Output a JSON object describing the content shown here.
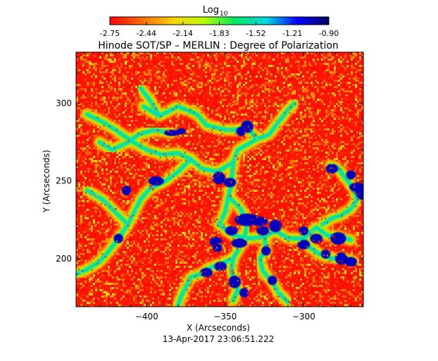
{
  "chart_data": {
    "type": "heatmap",
    "title": "Hinode SOT/SP – MERLIN : Degree of Polarization",
    "xlabel": "X (Arcseconds)",
    "ylabel": "Y (Arcseconds)",
    "footer": "13-Apr-2017 23:06:51.222",
    "xlim": [
      -445,
      -262
    ],
    "ylim": [
      169,
      333
    ],
    "xticks": [
      -400,
      -350,
      -300
    ],
    "yticks": [
      200,
      250,
      300
    ],
    "colorbar": {
      "label_main": "Log",
      "label_sub": "10",
      "range": [
        -2.75,
        -0.9
      ],
      "ticks": [
        "-2.75",
        "-2.44",
        "-2.14",
        "-1.83",
        "-1.52",
        "-1.21",
        "-0.90"
      ],
      "colormap": [
        "#ff0000",
        "#ff6a00",
        "#ffd000",
        "#b8ff00",
        "#00e860",
        "#00d8e0",
        "#0000ff",
        "#000060"
      ]
    },
    "background_value": -2.7,
    "network_paths": [
      [
        [
          -402,
          298
        ],
        [
          -392,
          292
        ],
        [
          -380,
          298
        ],
        [
          -368,
          293
        ],
        [
          -362,
          286
        ],
        [
          -350,
          283
        ],
        [
          -342,
          283
        ],
        [
          -336,
          285
        ],
        [
          -330,
          277
        ],
        [
          -342,
          270
        ],
        [
          -345,
          262
        ],
        [
          -346,
          248
        ],
        [
          -348,
          240
        ],
        [
          -350,
          230
        ],
        [
          -354,
          222
        ],
        [
          -345,
          215
        ],
        [
          -335,
          213
        ],
        [
          -325,
          214
        ],
        [
          -318,
          218
        ],
        [
          -310,
          213
        ],
        [
          -300,
          213
        ],
        [
          -292,
          220
        ],
        [
          -285,
          215
        ],
        [
          -276,
          214
        ],
        [
          -270,
          212
        ]
      ],
      [
        [
          -345,
          262
        ],
        [
          -355,
          256
        ],
        [
          -365,
          258
        ],
        [
          -372,
          264
        ],
        [
          -380,
          268
        ],
        [
          -390,
          267
        ],
        [
          -400,
          270
        ],
        [
          -410,
          276
        ],
        [
          -420,
          283
        ],
        [
          -428,
          288
        ],
        [
          -438,
          293
        ]
      ],
      [
        [
          -384,
          281
        ],
        [
          -395,
          283
        ],
        [
          -405,
          280
        ],
        [
          -412,
          275
        ],
        [
          -422,
          270
        ],
        [
          -430,
          275
        ]
      ],
      [
        [
          -372,
          264
        ],
        [
          -380,
          256
        ],
        [
          -388,
          250
        ],
        [
          -398,
          245
        ],
        [
          -404,
          238
        ],
        [
          -408,
          230
        ],
        [
          -412,
          222
        ],
        [
          -418,
          213
        ]
      ],
      [
        [
          -348,
          240
        ],
        [
          -340,
          232
        ],
        [
          -336,
          222
        ],
        [
          -338,
          212
        ],
        [
          -342,
          205
        ],
        [
          -345,
          200
        ],
        [
          -346,
          192
        ],
        [
          -344,
          186
        ],
        [
          -342,
          180
        ],
        [
          -345,
          173
        ]
      ],
      [
        [
          -345,
          200
        ],
        [
          -352,
          197
        ],
        [
          -360,
          194
        ],
        [
          -366,
          190
        ],
        [
          -372,
          188
        ],
        [
          -375,
          182
        ],
        [
          -378,
          176
        ],
        [
          -380,
          170
        ]
      ],
      [
        [
          -325,
          214
        ],
        [
          -324,
          205
        ],
        [
          -328,
          200
        ],
        [
          -326,
          192
        ],
        [
          -320,
          185
        ],
        [
          -316,
          178
        ],
        [
          -310,
          172
        ]
      ],
      [
        [
          -300,
          213
        ],
        [
          -296,
          207
        ],
        [
          -290,
          203
        ],
        [
          -282,
          200
        ],
        [
          -274,
          200
        ],
        [
          -268,
          198
        ]
      ],
      [
        [
          -283,
          260
        ],
        [
          -278,
          258
        ],
        [
          -272,
          250
        ],
        [
          -268,
          245
        ],
        [
          -266,
          238
        ],
        [
          -270,
          232
        ],
        [
          -276,
          228
        ],
        [
          -282,
          226
        ],
        [
          -288,
          222
        ]
      ],
      [
        [
          -330,
          277
        ],
        [
          -322,
          280
        ],
        [
          -316,
          288
        ],
        [
          -310,
          296
        ],
        [
          -306,
          300
        ]
      ],
      [
        [
          -418,
          213
        ],
        [
          -424,
          205
        ],
        [
          -430,
          198
        ],
        [
          -438,
          193
        ],
        [
          -445,
          190
        ]
      ],
      [
        [
          -412,
          222
        ],
        [
          -420,
          230
        ],
        [
          -428,
          238
        ],
        [
          -438,
          244
        ]
      ],
      [
        [
          -392,
          292
        ],
        [
          -398,
          302
        ],
        [
          -404,
          310
        ]
      ]
    ],
    "strong_patches": [
      [
        -384,
        281,
        5,
        2
      ],
      [
        -378,
        282,
        3,
        2
      ],
      [
        -336,
        285,
        4,
        4
      ],
      [
        -340,
        282,
        3,
        3
      ],
      [
        -394,
        250,
        5,
        3
      ],
      [
        -354,
        252,
        4,
        4
      ],
      [
        -347,
        249,
        4,
        3
      ],
      [
        -336,
        225,
        8,
        4
      ],
      [
        -328,
        224,
        5,
        3
      ],
      [
        -318,
        221,
        4,
        4
      ],
      [
        -326,
        218,
        4,
        3
      ],
      [
        -346,
        218,
        4,
        3
      ],
      [
        -300,
        218,
        3,
        3
      ],
      [
        -292,
        213,
        4,
        3
      ],
      [
        -278,
        213,
        5,
        4
      ],
      [
        -266,
        246,
        5,
        3
      ],
      [
        -263,
        243,
        4,
        5
      ],
      [
        -270,
        254,
        3,
        3
      ],
      [
        -282,
        258,
        4,
        3
      ],
      [
        -356,
        211,
        4,
        3
      ],
      [
        -355,
        207,
        3,
        3
      ],
      [
        -341,
        210,
        5,
        3
      ],
      [
        -353,
        195,
        4,
        3
      ],
      [
        -362,
        191,
        4,
        3
      ],
      [
        -344,
        185,
        4,
        4
      ],
      [
        -338,
        178,
        3,
        3
      ],
      [
        -276,
        200,
        4,
        4
      ],
      [
        -270,
        198,
        4,
        3
      ],
      [
        -286,
        203,
        3,
        3
      ],
      [
        -300,
        209,
        4,
        3
      ],
      [
        -324,
        205,
        3,
        3
      ],
      [
        -320,
        186,
        3,
        3
      ],
      [
        -413,
        244,
        3,
        3
      ],
      [
        -418,
        213,
        3,
        3
      ]
    ]
  }
}
